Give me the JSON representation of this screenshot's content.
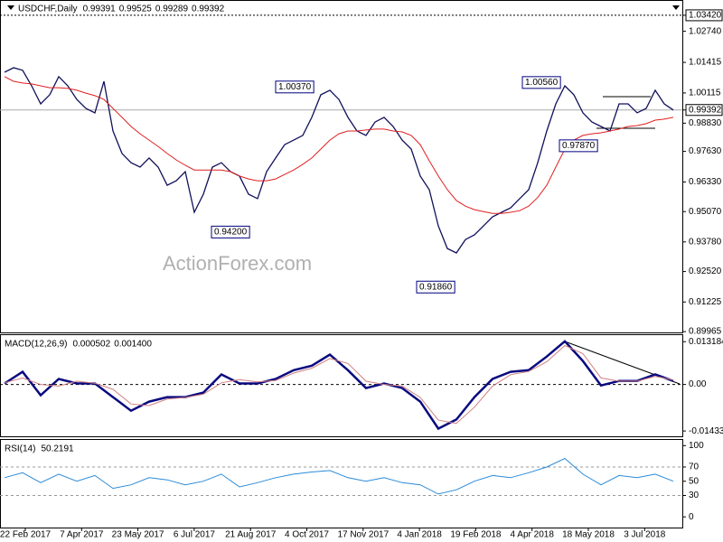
{
  "chart_data": [
    {
      "type": "line",
      "title": "USDCHF,Daily",
      "ohlc": [
        0.99391,
        0.99525,
        0.99289,
        0.99392
      ],
      "watermark": "ActionForex.com",
      "ylim": [
        0.8993,
        1.0407
      ],
      "yticks": [
        {
          "value": 1.0342,
          "label": "1.03420"
        },
        {
          "value": 1.0274,
          "label": "1.02740"
        },
        1.01415,
        1.00115,
        0.99392,
        {
          "value": 0.9883,
          "label": "0.98830"
        },
        {
          "value": 0.9763,
          "label": "0.97630"
        },
        {
          "value": 0.9633,
          "label": "0.96330"
        },
        {
          "value": 0.9507,
          "label": "0.95070"
        },
        {
          "value": 0.9378,
          "label": "0.93780"
        },
        {
          "value": 0.9252,
          "label": "0.92520"
        },
        0.91225,
        0.89965
      ],
      "annotations": [
        {
          "value": 1.0037,
          "label": "1.00370"
        },
        {
          "value": 0.942,
          "label": "0.94200"
        },
        {
          "value": 0.9186,
          "label": "0.91860"
        },
        {
          "value": 1.0056,
          "label": "1.00560"
        },
        {
          "value": 0.9787,
          "label": "0.97870"
        }
      ],
      "series": [
        {
          "color": "#10105a",
          "values": [
            1.01,
            1.0119,
            1.0108,
            1.0042,
            0.9965,
            1.0004,
            1.0081,
            1.0042,
            0.9984,
            0.9946,
            0.9927,
            1.0061,
            0.985,
            0.9754,
            0.9715,
            0.9696,
            0.9735,
            0.9696,
            0.9619,
            0.9638,
            0.9677,
            0.9504,
            0.9581,
            0.9696,
            0.9715,
            0.9677,
            0.9658,
            0.9581,
            0.9562,
            0.9677,
            0.9735,
            0.9792,
            0.9811,
            0.9831,
            0.9908,
            1.0004,
            1.0023,
            0.9984,
            0.9908,
            0.985,
            0.9831,
            0.9888,
            0.9908,
            0.9869,
            0.9811,
            0.9773,
            0.9658,
            0.96,
            0.9446,
            0.935,
            0.9331,
            0.9388,
            0.9408,
            0.9446,
            0.9485,
            0.9504,
            0.9523,
            0.9562,
            0.96,
            0.9715,
            0.985,
            0.9965,
            1.0042,
            1.0004,
            0.9927,
            0.9888,
            0.9869,
            0.985,
            0.9965,
            0.9965,
            0.9927,
            0.9946,
            1.0023,
            0.9965,
            0.9939
          ]
        },
        {
          "color": "#e02020",
          "values": [
            1.0081,
            1.0061,
            1.0054,
            1.005,
            1.0042,
            1.0034,
            1.0034,
            1.0031,
            1.0023,
            1.0011,
            1.0,
            0.9984,
            0.9946,
            0.9908,
            0.9869,
            0.9838,
            0.9811,
            0.9784,
            0.9754,
            0.9727,
            0.9704,
            0.9684,
            0.9684,
            0.9684,
            0.9684,
            0.9677,
            0.9658,
            0.9646,
            0.9638,
            0.9638,
            0.9646,
            0.9665,
            0.9684,
            0.9708,
            0.9735,
            0.9773,
            0.9811,
            0.9838,
            0.985,
            0.985,
            0.9854,
            0.9858,
            0.9858,
            0.985,
            0.9846,
            0.9831,
            0.9792,
            0.9723,
            0.9658,
            0.96,
            0.9554,
            0.953,
            0.9515,
            0.9507,
            0.9499,
            0.9499,
            0.9504,
            0.9511,
            0.953,
            0.9567,
            0.9619,
            0.9696,
            0.9773,
            0.9811,
            0.9831,
            0.9838,
            0.9842,
            0.985,
            0.9858,
            0.9869,
            0.9873,
            0.9881,
            0.9896,
            0.99,
            0.9908
          ]
        }
      ]
    },
    {
      "type": "line",
      "title": "MACD(12,26,9)",
      "readout": [
        0.000502,
        {
          "value": 0.0014,
          "label": "0.001400"
        }
      ],
      "ylim": [
        -0.0157,
        0.0152
      ],
      "yticks": [
        0.013184,
        {
          "value": 0,
          "label": "0.00"
        },
        -0.014339
      ],
      "series": [
        {
          "color": "#0a0a80",
          "values": [
            0.0003,
            0.0039,
            -0.0033,
            0.0017,
            0.0003,
            0.0003,
            -0.0039,
            -0.0081,
            -0.0053,
            -0.0039,
            -0.0039,
            -0.0025,
            0.0031,
            0.0003,
            0.0003,
            0.0017,
            0.0044,
            0.0058,
            0.0092,
            0.0044,
            -0.0011,
            0.0003,
            -0.0011,
            -0.0053,
            -0.0136,
            -0.0108,
            -0.0039,
            0.0017,
            0.0039,
            0.0044,
            0.0086,
            0.0133,
            0.0072,
            -0.0003,
            0.0011,
            0.0011,
            0.0031,
            0.0011
          ]
        },
        {
          "color": "#d08080",
          "values": [
            0.0005,
            0.002,
            0.0,
            -0.0005,
            0.001,
            0.0004,
            -0.0015,
            -0.006,
            -0.0065,
            -0.0045,
            -0.004,
            -0.003,
            0.0005,
            0.0015,
            0.0008,
            0.0012,
            0.0035,
            0.005,
            0.008,
            0.0065,
            0.001,
            0.0,
            -0.0005,
            -0.004,
            -0.011,
            -0.012,
            -0.007,
            -0.0005,
            0.003,
            0.004,
            0.007,
            0.012,
            0.0095,
            0.002,
            0.001,
            0.001,
            0.0025,
            0.0014
          ]
        }
      ]
    },
    {
      "type": "line",
      "title": "RSI(14)",
      "readout": [
        50.2191
      ],
      "ylim": [
        -15,
        108
      ],
      "yticks": [
        100,
        70,
        50,
        30,
        0
      ],
      "levels": [
        70,
        30
      ],
      "series": [
        {
          "color": "#2a8ad8",
          "values": [
            55,
            62,
            48,
            60,
            50,
            58,
            40,
            45,
            55,
            52,
            45,
            50,
            60,
            42,
            48,
            55,
            60,
            63,
            65,
            55,
            50,
            55,
            48,
            45,
            32,
            38,
            50,
            58,
            55,
            62,
            70,
            82,
            60,
            45,
            58,
            55,
            60,
            50
          ]
        }
      ],
      "date_labels": [
        "22 Feb 2017",
        "7 Apr 2017",
        "23 May 2017",
        "6 Jul 2017",
        "21 Aug 2017",
        "4 Oct 2017",
        "17 Nov 2017",
        "4 Jan 2018",
        "19 Feb 2018",
        "4 Apr 2018",
        "18 May 2018",
        "3 Jul 2018"
      ]
    }
  ]
}
